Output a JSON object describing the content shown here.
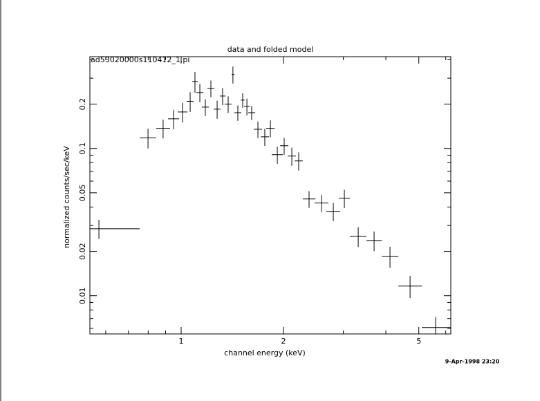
{
  "chart_data": {
    "type": "scatter",
    "title": "data and folded model",
    "subtitle": "ad53020000s110412_1.pi",
    "x_label": "channel energy (keV)",
    "y_label": "normalized counts/sec/keV",
    "timestamp": "9-Apr-1998 23:20",
    "x_log": true,
    "y_log": true,
    "color": "#000000",
    "xlim": [
      0.539,
      6.21
    ],
    "ylim": [
      0.0055,
      0.42
    ],
    "xticks": [
      1,
      2,
      5
    ],
    "yticks": [
      0.01,
      0.02,
      0.05,
      0.1,
      0.2
    ],
    "x_minor_ticks": [
      0.6,
      0.7,
      0.8,
      0.9,
      3,
      4,
      6
    ],
    "y_minor_ticks": [
      0.006,
      0.007,
      0.008,
      0.009,
      0.03,
      0.04,
      0.06,
      0.07,
      0.08,
      0.09,
      0.3,
      0.4
    ],
    "x": [
      0.573,
      0.799,
      0.885,
      0.95,
      1.009,
      1.063,
      1.098,
      1.135,
      1.178,
      1.223,
      1.276,
      1.324,
      1.375,
      1.42,
      1.468,
      1.517,
      1.561,
      1.612,
      1.682,
      1.762,
      1.83,
      1.918,
      2.009,
      2.116,
      2.217,
      2.378,
      2.588,
      2.802,
      3.02,
      3.317,
      3.694,
      4.114,
      4.713,
      5.604
    ],
    "x_low": [
      0.539,
      0.755,
      0.845,
      0.915,
      0.977,
      1.038,
      1.078,
      1.108,
      1.151,
      1.195,
      1.246,
      1.3,
      1.343,
      1.408,
      1.434,
      1.496,
      1.531,
      1.575,
      1.635,
      1.714,
      1.779,
      1.847,
      1.954,
      2.057,
      2.156,
      2.28,
      2.469,
      2.674,
      2.909,
      3.135,
      3.508,
      3.89,
      4.352,
      5.104
    ],
    "x_high": [
      0.755,
      0.845,
      0.928,
      0.986,
      1.043,
      1.088,
      1.119,
      1.162,
      1.206,
      1.252,
      1.306,
      1.349,
      1.408,
      1.434,
      1.503,
      1.539,
      1.59,
      1.651,
      1.73,
      1.813,
      1.882,
      1.991,
      2.067,
      2.176,
      2.28,
      2.481,
      2.712,
      2.937,
      3.135,
      3.508,
      3.89,
      4.352,
      5.104,
      6.211
    ],
    "values": [
      0.0285,
      0.118,
      0.137,
      0.159,
      0.177,
      0.209,
      0.285,
      0.24,
      0.191,
      0.256,
      0.185,
      0.227,
      0.2,
      0.318,
      0.175,
      0.213,
      0.193,
      0.175,
      0.135,
      0.12,
      0.137,
      0.0907,
      0.1044,
      0.0888,
      0.0823,
      0.0454,
      0.0426,
      0.0374,
      0.0459,
      0.0253,
      0.0237,
      0.0185,
      0.01163,
      0.00608
    ],
    "errors": [
      0.0042,
      0.018,
      0.02,
      0.024,
      0.027,
      0.032,
      0.046,
      0.034,
      0.025,
      0.033,
      0.026,
      0.03,
      0.026,
      0.042,
      0.021,
      0.024,
      0.025,
      0.019,
      0.0175,
      0.016,
      0.018,
      0.012,
      0.0137,
      0.0125,
      0.0116,
      0.0059,
      0.0056,
      0.0053,
      0.0065,
      0.0039,
      0.0036,
      0.003,
      0.002,
      0.0011
    ]
  }
}
